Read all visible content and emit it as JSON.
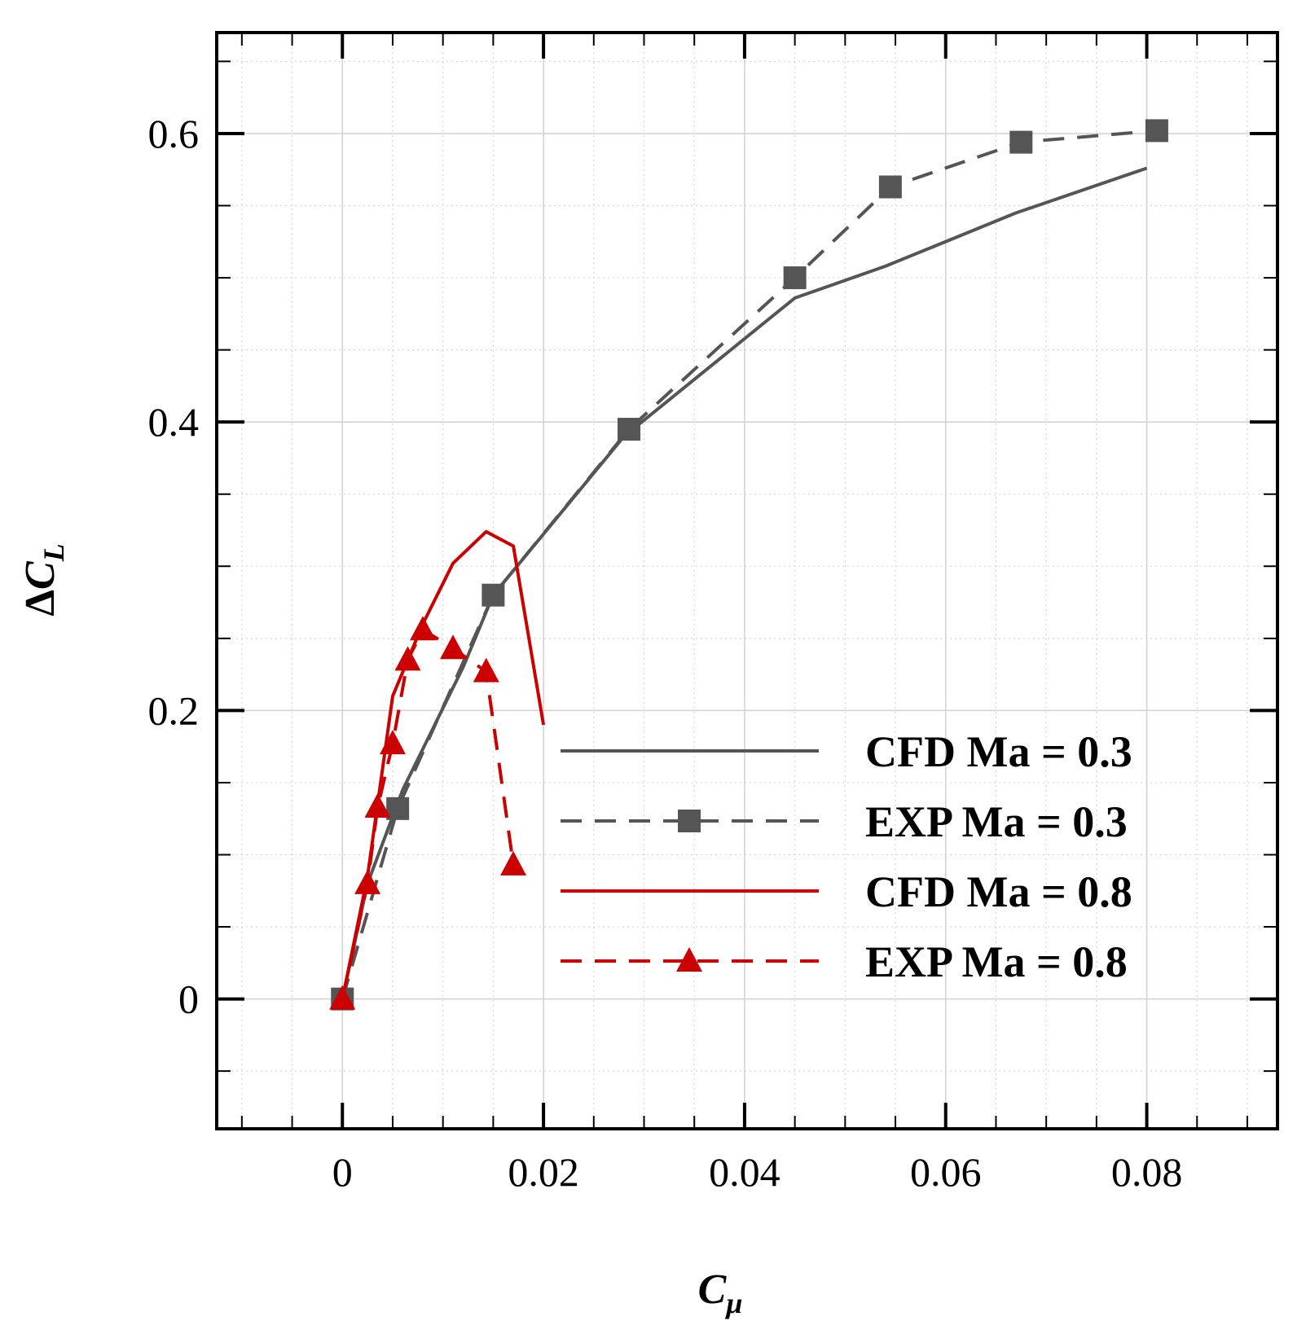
{
  "chart_data": {
    "type": "line",
    "title": "",
    "xlabel": {
      "main": "C",
      "sub": "μ"
    },
    "ylabel": {
      "prefix": "Δ",
      "main": "C",
      "sub": "L"
    },
    "xlim": [
      -0.0125,
      0.093
    ],
    "ylim": [
      -0.09,
      0.67
    ],
    "grid": true,
    "x_ticks": [
      {
        "value": 0,
        "label": "0"
      },
      {
        "value": 0.02,
        "label": "0.02"
      },
      {
        "value": 0.04,
        "label": "0.04"
      },
      {
        "value": 0.06,
        "label": "0.06"
      },
      {
        "value": 0.08,
        "label": "0.08"
      }
    ],
    "x_minor_ticks": [
      -0.01,
      -0.005,
      0.005,
      0.01,
      0.015,
      0.025,
      0.03,
      0.035,
      0.045,
      0.05,
      0.055,
      0.065,
      0.07,
      0.075,
      0.085,
      0.09
    ],
    "y_ticks": [
      {
        "value": 0,
        "label": "0"
      },
      {
        "value": 0.2,
        "label": "0.2"
      },
      {
        "value": 0.4,
        "label": "0.4"
      },
      {
        "value": 0.6,
        "label": "0.6"
      }
    ],
    "y_minor_ticks": [
      -0.05,
      0.05,
      0.1,
      0.15,
      0.25,
      0.3,
      0.35,
      0.45,
      0.5,
      0.55,
      0.65
    ],
    "legend_position": "lower-right",
    "series": [
      {
        "name": "CFD Ma = 0.3",
        "color": "#555555",
        "dash": "solid",
        "marker": "none",
        "x": [
          0,
          0.0025,
          0.006,
          0.012,
          0.015,
          0.028,
          0.045,
          0.054,
          0.067,
          0.08
        ],
        "y": [
          0,
          0.08,
          0.145,
          0.23,
          0.28,
          0.39,
          0.486,
          0.508,
          0.545,
          0.576
        ]
      },
      {
        "name": "EXP Ma = 0.3",
        "color": "#555555",
        "dash": "dashed",
        "marker": "square",
        "x": [
          0,
          0.0055,
          0.015,
          0.0285,
          0.045,
          0.0545,
          0.0675,
          0.081
        ],
        "y": [
          0,
          0.132,
          0.28,
          0.395,
          0.5,
          0.563,
          0.594,
          0.602
        ]
      },
      {
        "name": "CFD Ma = 0.8",
        "color": "#cc0000",
        "dash": "solid",
        "marker": "none",
        "x": [
          0,
          0.0025,
          0.005,
          0.008,
          0.011,
          0.0143,
          0.017,
          0.02
        ],
        "y": [
          0,
          0.085,
          0.21,
          0.26,
          0.302,
          0.324,
          0.314,
          0.19
        ]
      },
      {
        "name": "EXP Ma = 0.8",
        "color": "#cc0000",
        "dash": "dashed",
        "marker": "triangle",
        "x": [
          0,
          0.0025,
          0.0035,
          0.005,
          0.0065,
          0.008,
          0.011,
          0.0143,
          0.017
        ],
        "y": [
          0,
          0.08,
          0.133,
          0.177,
          0.235,
          0.256,
          0.243,
          0.227,
          0.093
        ]
      }
    ]
  }
}
